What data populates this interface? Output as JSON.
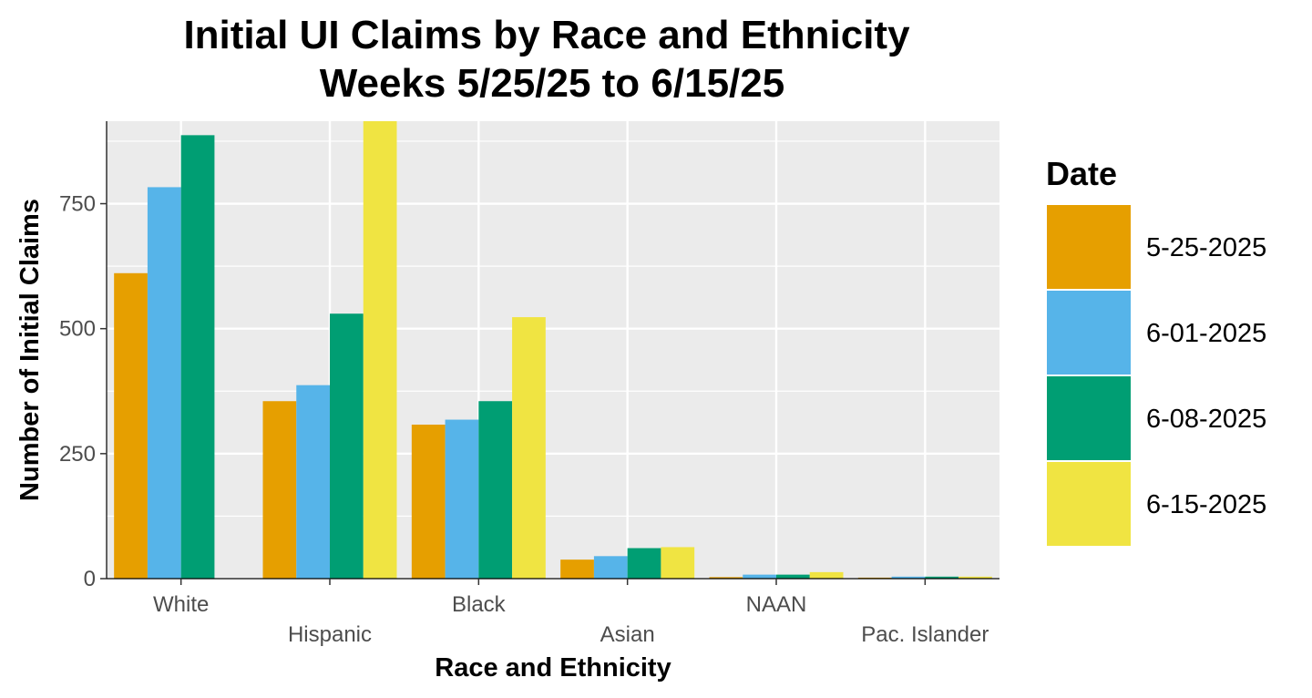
{
  "chart_data": {
    "type": "bar",
    "title": "Initial UI Claims by Race and Ethnicity",
    "subtitle": "Weeks  5/25/25 to 6/15/25",
    "xlabel": "Race and Ethnicity",
    "ylabel": "Number of Initial Claims",
    "categories": [
      "White",
      "Hispanic",
      "Black",
      "Asian",
      "NAAN",
      "Pac. Islander"
    ],
    "yticks": [
      0,
      250,
      500,
      750
    ],
    "ylim": [
      0,
      915
    ],
    "grid": true,
    "legend": {
      "title": "Date",
      "placement": "right"
    },
    "series": [
      {
        "name": "5-25-2025",
        "color": "#E69F00",
        "values": [
          611,
          355,
          308,
          38,
          3,
          2
        ]
      },
      {
        "name": "6-01-2025",
        "color": "#56B4E9",
        "values": [
          783,
          387,
          318,
          45,
          8,
          4
        ]
      },
      {
        "name": "6-08-2025",
        "color": "#009E73",
        "values": [
          887,
          530,
          355,
          61,
          8,
          4
        ]
      },
      {
        "name": "6-15-2025",
        "color": "#F0E442",
        "values": [
          null,
          920,
          523,
          63,
          13,
          4
        ]
      }
    ],
    "panel_background": "#EBEBEB",
    "grid_color": "#FFFFFF",
    "axis_line_color": "#000000"
  }
}
